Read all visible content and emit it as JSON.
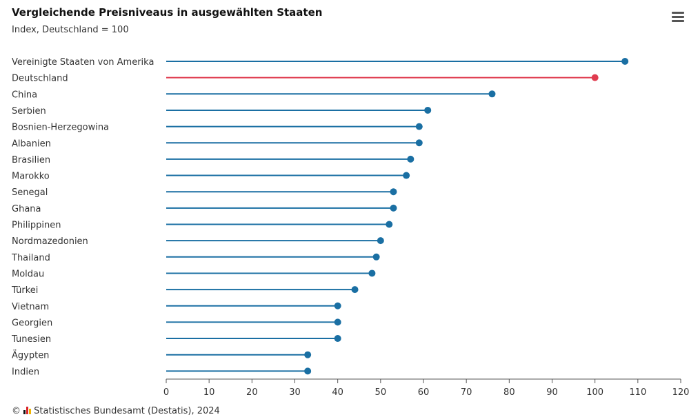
{
  "header": {
    "title": "Vergleichende Preisniveaus in ausgewählten Staaten",
    "subtitle": "Index, Deutschland = 100",
    "menu_icon": "hamburger-menu-icon"
  },
  "credit": {
    "copyright": "©",
    "logo_icon": "destatis-logo-icon",
    "text": "Statistisches Bundesamt (Destatis), 2024"
  },
  "colors": {
    "series": "#1a6fa3",
    "highlight": "#e03c4f"
  },
  "chart_data": {
    "type": "lollipop",
    "title": "Vergleichende Preisniveaus in ausgewählten Staaten",
    "subtitle": "Index, Deutschland = 100",
    "categories": [
      "Vereinigte Staaten von Amerika",
      "Deutschland",
      "China",
      "Serbien",
      "Bosnien-Herzegowina",
      "Albanien",
      "Brasilien",
      "Marokko",
      "Senegal",
      "Ghana",
      "Philippinen",
      "Nordmazedonien",
      "Thailand",
      "Moldau",
      "Türkei",
      "Vietnam",
      "Georgien",
      "Tunesien",
      "Ägypten",
      "Indien"
    ],
    "values": [
      107,
      100,
      76,
      61,
      59,
      59,
      57,
      56,
      53,
      53,
      52,
      50,
      49,
      48,
      44,
      40,
      40,
      40,
      33,
      33
    ],
    "highlight_category": "Deutschland",
    "xlim": [
      0,
      120
    ],
    "xticks": [
      0,
      10,
      20,
      30,
      40,
      50,
      60,
      70,
      80,
      90,
      100,
      110,
      120
    ],
    "grid": false,
    "legend": "none"
  }
}
